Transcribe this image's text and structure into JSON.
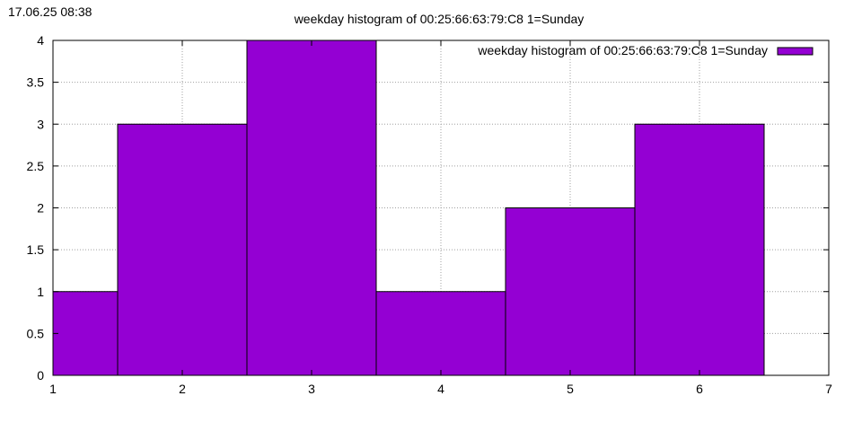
{
  "timestamp": "17.06.25 08:38",
  "chart_data": {
    "type": "bar",
    "title": "weekday histogram of 00:25:66:63:79:C8 1=Sunday",
    "xlabel": "",
    "ylabel": "",
    "x": [
      1,
      2,
      3,
      4,
      5,
      6
    ],
    "values": [
      1,
      3,
      4,
      1,
      2,
      3
    ],
    "bar_width": 1,
    "xlim": [
      1,
      7
    ],
    "ylim": [
      0,
      4
    ],
    "xticks": [
      1,
      2,
      3,
      4,
      5,
      6,
      7
    ],
    "yticks": [
      0,
      0.5,
      1,
      1.5,
      2,
      2.5,
      3,
      3.5,
      4
    ],
    "series": [
      {
        "name": "weekday histogram of 00:25:66:63:79:C8 1=Sunday",
        "color": "#9400d3"
      }
    ],
    "grid": true,
    "legend": "top-right"
  }
}
